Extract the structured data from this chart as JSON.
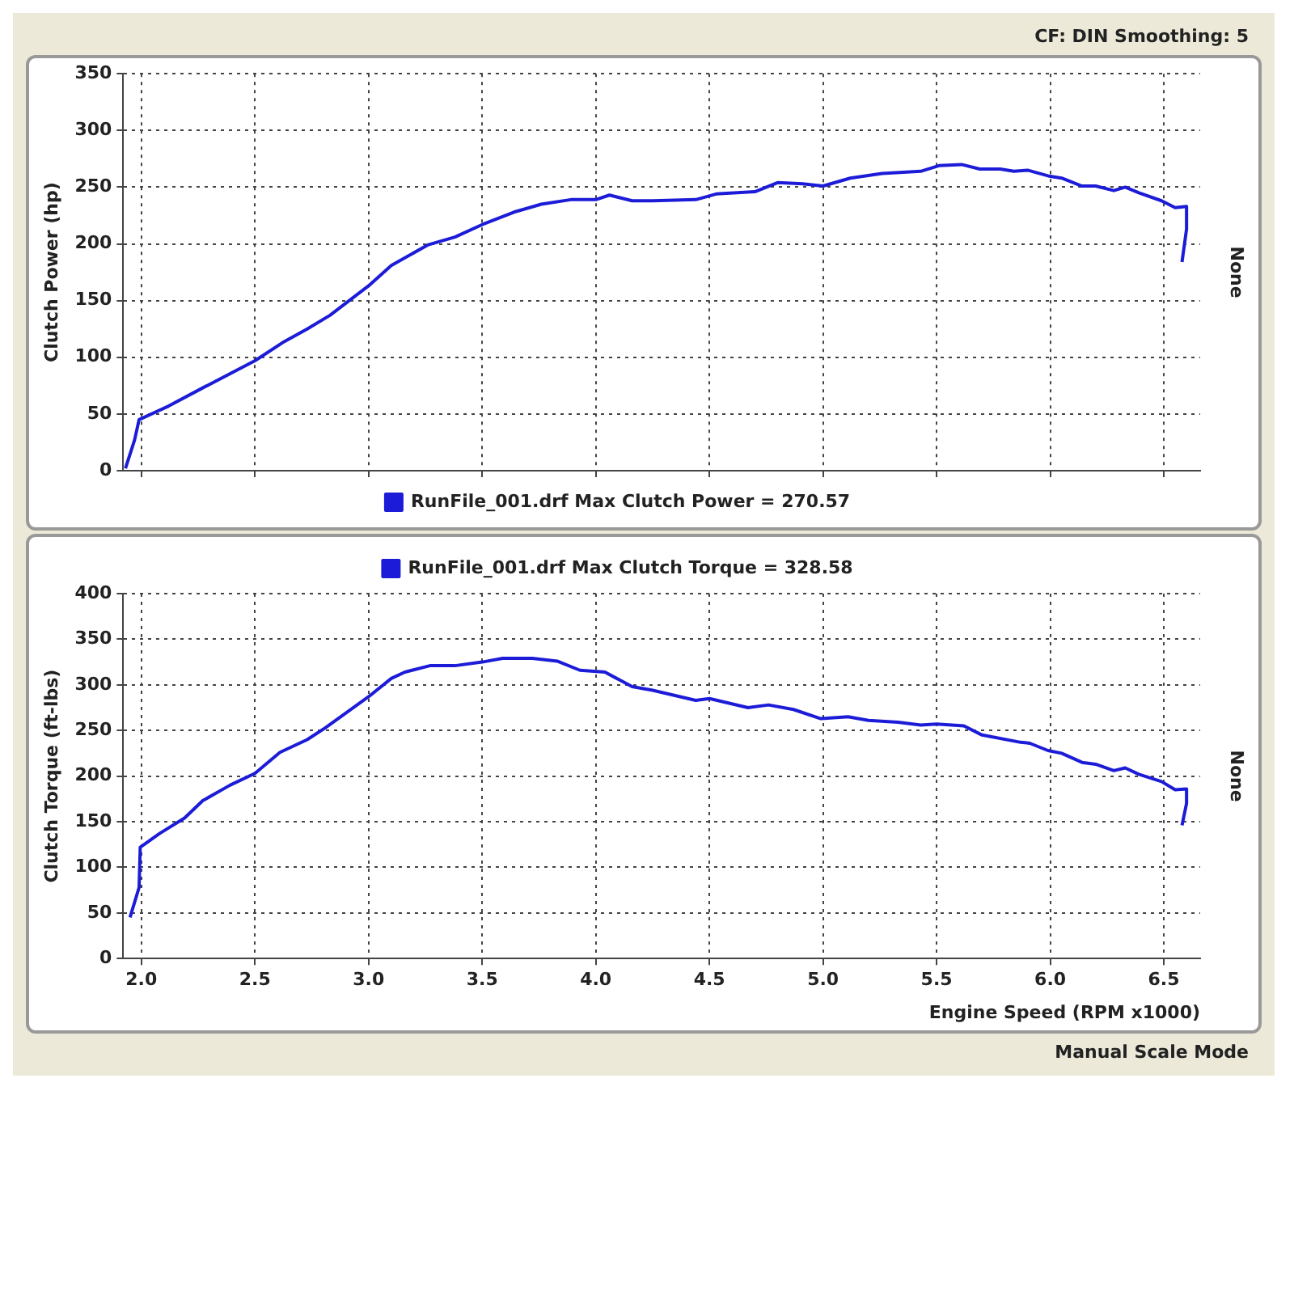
{
  "chart_data": [
    {
      "type": "line",
      "ylabel": "Clutch Power (hp)",
      "y2label": "None",
      "annotations": [
        "CF: DIN  Smoothing: 5"
      ],
      "legend": "bottom",
      "grid": true,
      "tick_labels": "y",
      "xlim": [
        1.92,
        6.66
      ],
      "xticks": [
        2,
        2.5,
        3,
        3.5,
        4,
        4.5,
        5,
        5.5,
        6,
        6.5
      ],
      "ylim": [
        0,
        350
      ],
      "yticks": [
        0,
        50,
        100,
        150,
        200,
        250,
        300,
        350
      ],
      "series": [
        {
          "name": "RunFile_001.drf Max Clutch Power = 270.57",
          "color": "#1c1cd8",
          "x": [
            1.93,
            1.97,
            1.99,
            2.12,
            2.27,
            2.5,
            2.63,
            2.73,
            2.83,
            3.0,
            3.1,
            3.26,
            3.38,
            3.5,
            3.64,
            3.76,
            3.89,
            4.0,
            4.06,
            4.16,
            4.25,
            4.44,
            4.53,
            4.7,
            4.8,
            4.91,
            5.0,
            5.12,
            5.26,
            5.43,
            5.51,
            5.61,
            5.69,
            5.78,
            5.84,
            5.9,
            5.99,
            6.05,
            6.14,
            6.2,
            6.28,
            6.33,
            6.39,
            6.49,
            6.55,
            6.6,
            6.6,
            6.58
          ],
          "values": [
            2,
            27,
            45,
            57,
            73,
            97,
            114,
            125,
            137,
            163,
            181,
            199,
            206,
            217,
            228,
            235,
            239,
            239,
            243,
            238,
            238,
            239,
            244,
            246,
            254,
            253,
            251,
            258,
            262,
            264,
            269,
            270,
            266,
            266,
            264,
            265,
            260,
            258,
            251,
            251,
            247,
            250,
            245,
            238,
            232,
            233,
            213,
            184
          ]
        }
      ]
    },
    {
      "type": "line",
      "xlabel": "Engine Speed (RPM x1000)",
      "ylabel": "Clutch Torque (ft-lbs)",
      "y2label": "None",
      "annotations": [
        "Manual Scale Mode"
      ],
      "legend": "top",
      "grid": true,
      "xlim": [
        1.92,
        6.66
      ],
      "xticks": [
        {
          "value": 2,
          "label": "2.0"
        },
        2.5,
        {
          "value": 3,
          "label": "3.0"
        },
        3.5,
        {
          "value": 4,
          "label": "4.0"
        },
        4.5,
        {
          "value": 5,
          "label": "5.0"
        },
        5.5,
        {
          "value": 6,
          "label": "6.0"
        },
        6.5
      ],
      "ylim": [
        0,
        400
      ],
      "yticks": [
        0,
        50,
        100,
        150,
        200,
        250,
        300,
        350,
        400
      ],
      "series": [
        {
          "name": "RunFile_001.drf Max Clutch Torque = 328.58",
          "color": "#1c1cd8",
          "x": [
            1.95,
            1.99,
            1.995,
            2.08,
            2.19,
            2.27,
            2.39,
            2.5,
            2.61,
            2.73,
            2.81,
            3.0,
            3.1,
            3.16,
            3.27,
            3.38,
            3.5,
            3.59,
            3.72,
            3.83,
            3.93,
            4.04,
            4.16,
            4.25,
            4.44,
            4.5,
            4.67,
            4.76,
            4.87,
            4.99,
            5.11,
            5.2,
            5.33,
            5.43,
            5.5,
            5.62,
            5.7,
            5.87,
            5.91,
            5.99,
            6.05,
            6.14,
            6.2,
            6.28,
            6.33,
            6.39,
            6.49,
            6.55,
            6.6,
            6.6,
            6.58
          ],
          "values": [
            45,
            78,
            122,
            137,
            154,
            173,
            190,
            203,
            226,
            240,
            253,
            287,
            307,
            314,
            321,
            321,
            325,
            329,
            329,
            326,
            316,
            314,
            298,
            294,
            283,
            285,
            275,
            278,
            273,
            263,
            265,
            261,
            259,
            256,
            257,
            255,
            245,
            237,
            236,
            228,
            225,
            215,
            213,
            206,
            209,
            202,
            194,
            185,
            186,
            170,
            146
          ]
        }
      ]
    }
  ]
}
